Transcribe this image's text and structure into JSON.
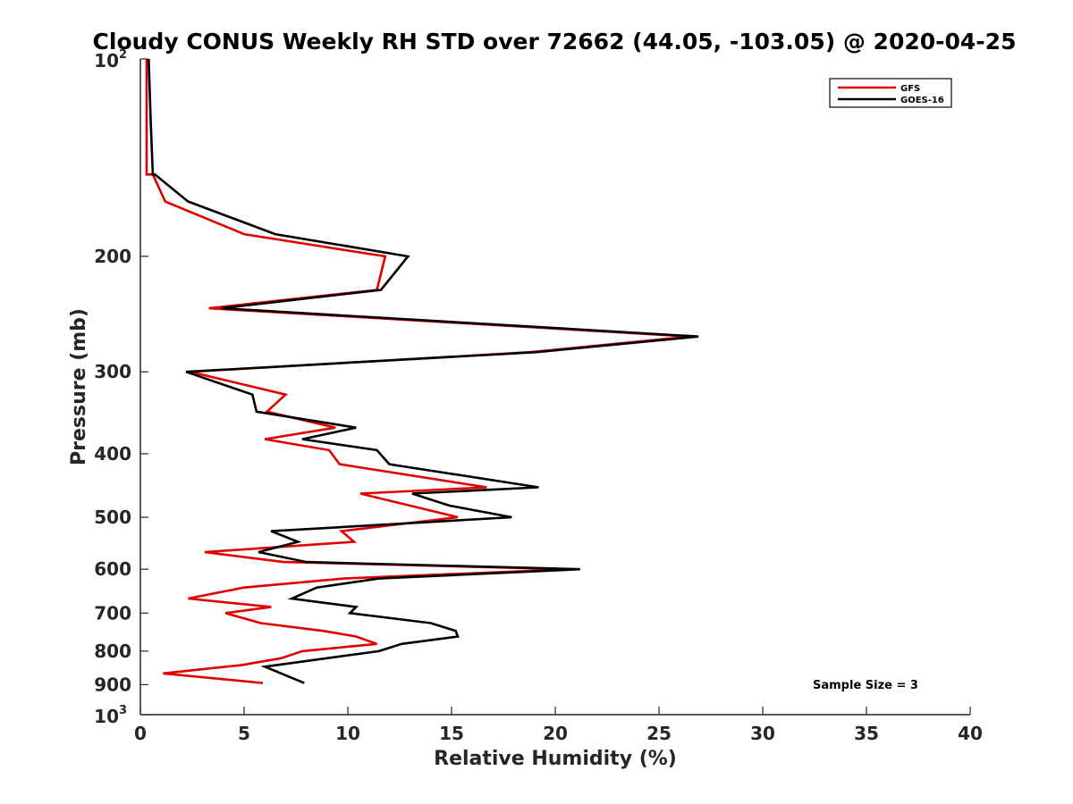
{
  "chart_data": {
    "type": "line",
    "title": "Cloudy CONUS Weekly RH STD over 72662 (44.05, -103.05) @ 2020-04-25",
    "xlabel": "Relative Humidity (%)",
    "ylabel": "Pressure (mb)",
    "xlim": [
      0,
      40
    ],
    "ylim": [
      100,
      1000
    ],
    "y_scale": "log",
    "y_reversed": true,
    "grid": false,
    "legend_position": "top-right",
    "x_ticks": [
      "0",
      "5",
      "10",
      "15",
      "20",
      "25",
      "30",
      "35",
      "40"
    ],
    "y_ticks": [
      {
        "value": 100,
        "base": "10",
        "exp": "2"
      },
      {
        "value": 200,
        "label": "200"
      },
      {
        "value": 300,
        "label": "300"
      },
      {
        "value": 400,
        "label": "400"
      },
      {
        "value": 500,
        "label": "500"
      },
      {
        "value": 600,
        "label": "600"
      },
      {
        "value": 700,
        "label": "700"
      },
      {
        "value": 800,
        "label": "800"
      },
      {
        "value": 900,
        "label": "900"
      },
      {
        "value": 1000,
        "base": "10",
        "exp": "3"
      }
    ],
    "annotation": "Sample Size = 3",
    "series": [
      {
        "name": "GFS",
        "color": "#e00000",
        "points": [
          [
            0.3,
            100
          ],
          [
            0.3,
            125
          ],
          [
            0.3,
            150
          ],
          [
            0.6,
            150
          ],
          [
            1.2,
            165
          ],
          [
            5.0,
            185
          ],
          [
            11.8,
            200
          ],
          [
            11.4,
            225
          ],
          [
            3.3,
            240
          ],
          [
            26.5,
            265
          ],
          [
            18.8,
            280
          ],
          [
            2.4,
            300
          ],
          [
            7.0,
            325
          ],
          [
            6.1,
            345
          ],
          [
            9.4,
            365
          ],
          [
            6.0,
            380
          ],
          [
            9.1,
            395
          ],
          [
            9.6,
            415
          ],
          [
            16.7,
            450
          ],
          [
            10.6,
            460
          ],
          [
            13.0,
            480
          ],
          [
            15.3,
            500
          ],
          [
            9.7,
            525
          ],
          [
            10.3,
            545
          ],
          [
            3.1,
            565
          ],
          [
            6.9,
            585
          ],
          [
            20.7,
            600
          ],
          [
            9.8,
            620
          ],
          [
            5.0,
            640
          ],
          [
            2.3,
            665
          ],
          [
            6.3,
            685
          ],
          [
            4.1,
            700
          ],
          [
            5.8,
            725
          ],
          [
            8.8,
            745
          ],
          [
            10.4,
            760
          ],
          [
            11.4,
            780
          ],
          [
            7.8,
            800
          ],
          [
            6.8,
            820
          ],
          [
            4.9,
            840
          ],
          [
            1.1,
            865
          ],
          [
            5.9,
            895
          ]
        ]
      },
      {
        "name": "GOES-16",
        "color": "#000000",
        "points": [
          [
            0.4,
            100
          ],
          [
            0.5,
            125
          ],
          [
            0.6,
            150
          ],
          [
            0.7,
            150
          ],
          [
            2.3,
            165
          ],
          [
            6.5,
            185
          ],
          [
            12.9,
            200
          ],
          [
            11.6,
            225
          ],
          [
            3.9,
            240
          ],
          [
            26.9,
            265
          ],
          [
            19.1,
            280
          ],
          [
            2.2,
            300
          ],
          [
            5.4,
            325
          ],
          [
            5.6,
            345
          ],
          [
            10.4,
            365
          ],
          [
            7.8,
            380
          ],
          [
            11.4,
            395
          ],
          [
            12.0,
            415
          ],
          [
            19.2,
            450
          ],
          [
            13.1,
            460
          ],
          [
            14.9,
            480
          ],
          [
            17.9,
            500
          ],
          [
            6.3,
            525
          ],
          [
            7.6,
            545
          ],
          [
            5.7,
            565
          ],
          [
            8.0,
            585
          ],
          [
            21.2,
            600
          ],
          [
            11.5,
            620
          ],
          [
            8.5,
            640
          ],
          [
            7.3,
            665
          ],
          [
            10.4,
            685
          ],
          [
            10.1,
            700
          ],
          [
            14.0,
            725
          ],
          [
            15.2,
            745
          ],
          [
            15.3,
            760
          ],
          [
            12.6,
            780
          ],
          [
            11.5,
            800
          ],
          [
            6.0,
            845
          ],
          [
            7.9,
            895
          ]
        ]
      }
    ]
  }
}
